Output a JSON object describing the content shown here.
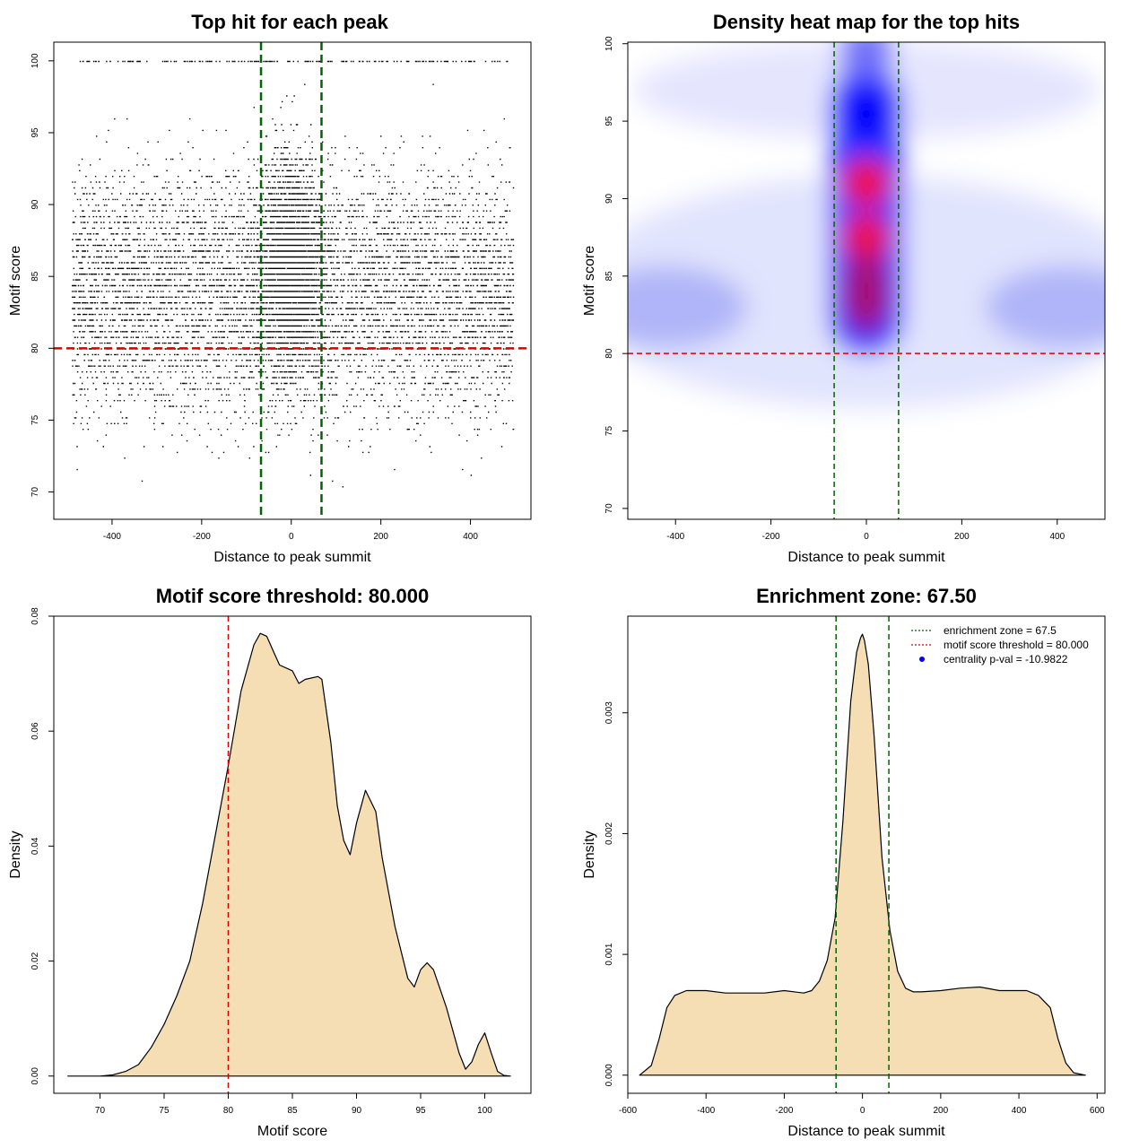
{
  "chart_data": [
    {
      "type": "scatter",
      "title": "Top hit for each peak",
      "xlabel": "Distance to peak summit",
      "ylabel": "Motif score",
      "xlim": [
        -530,
        535
      ],
      "ylim": [
        68.1,
        101.3
      ],
      "xticks": [
        "-400",
        "-200",
        "0",
        "200",
        "400"
      ],
      "yticks": [
        "70",
        "75",
        "80",
        "85",
        "90",
        "95",
        "100"
      ],
      "point_color": "#000000",
      "x_range_of_hits": [
        -490,
        495
      ],
      "hlines": [
        {
          "y": 80,
          "color": "#dd0000",
          "style": "dashed"
        }
      ],
      "vlines": [
        {
          "x": -67.5,
          "color": "#006400",
          "style": "dashed"
        },
        {
          "x": 67.5,
          "color": "#006400",
          "style": "dashed"
        }
      ],
      "note_points": "Several thousand hits; score levels are discrete; density strongly concentrated near x = 0 with scores 80-95."
    },
    {
      "type": "heatmap",
      "title": "Density heat map for the top hits",
      "xlabel": "Distance to peak summit",
      "ylabel": "Motif score",
      "xlim": [
        -500,
        500
      ],
      "ylim": [
        69.3,
        100.1
      ],
      "xticks": [
        "-400",
        "-200",
        "0",
        "200",
        "400"
      ],
      "yticks": [
        "70",
        "75",
        "80",
        "85",
        "90",
        "95",
        "100"
      ],
      "colors": {
        "low": "#ffffff",
        "mid": "#0000ff",
        "high": "#ff0000"
      },
      "hotspots": [
        {
          "x": 0,
          "y": 87.5,
          "level": "high"
        },
        {
          "x": 0,
          "y": 91,
          "level": "high"
        },
        {
          "x": 0,
          "y": 84,
          "level": "mid-high"
        },
        {
          "x": 0,
          "y": 95.5,
          "level": "mid"
        },
        {
          "x": 0,
          "y": 99.5,
          "level": "low"
        },
        {
          "x": -450,
          "y": 83,
          "level": "low"
        },
        {
          "x": 450,
          "y": 83,
          "level": "low"
        }
      ],
      "hlines": [
        {
          "y": 80,
          "color": "#dd0000",
          "style": "dashed"
        }
      ],
      "vlines": [
        {
          "x": -67.5,
          "color": "#006400",
          "style": "dashed"
        },
        {
          "x": 67.5,
          "color": "#006400",
          "style": "dashed"
        }
      ]
    },
    {
      "type": "area",
      "title": "Motif score threshold: 80.000",
      "xlabel": "Motif score",
      "ylabel": "Density",
      "xlim": [
        66.4,
        103.6
      ],
      "ylim": [
        -0.003,
        0.08
      ],
      "xticks": [
        "70",
        "75",
        "80",
        "85",
        "90",
        "95",
        "100"
      ],
      "yticks": [
        "0.00",
        "0.02",
        "0.04",
        "0.06",
        "0.08"
      ],
      "fill_color": "#f5deb3",
      "x": [
        67.5,
        70,
        71,
        72,
        73,
        74,
        75,
        76,
        77,
        78,
        79,
        80,
        81,
        82,
        82.5,
        83,
        83.5,
        84,
        85,
        85.5,
        86,
        87,
        87.3,
        88,
        88.5,
        89,
        89.5,
        90,
        90.7,
        91.5,
        92,
        93,
        94,
        94.5,
        95,
        95.5,
        96,
        97,
        98,
        98.5,
        99,
        99.5,
        100,
        100.5,
        101,
        101.5,
        102
      ],
      "values": [
        0.0,
        0.0,
        0.0002,
        0.0008,
        0.002,
        0.005,
        0.009,
        0.014,
        0.02,
        0.03,
        0.042,
        0.054,
        0.067,
        0.075,
        0.077,
        0.0765,
        0.074,
        0.0715,
        0.0705,
        0.0683,
        0.069,
        0.0695,
        0.069,
        0.058,
        0.047,
        0.041,
        0.0385,
        0.044,
        0.0497,
        0.046,
        0.038,
        0.026,
        0.017,
        0.0155,
        0.0185,
        0.0197,
        0.0185,
        0.012,
        0.004,
        0.0012,
        0.0025,
        0.0055,
        0.0075,
        0.004,
        0.0008,
        0.0001,
        0.0
      ],
      "vlines": [
        {
          "x": 80,
          "color": "#dd0000",
          "style": "dashed"
        }
      ]
    },
    {
      "type": "area",
      "title": "Enrichment zone: 67.50",
      "xlabel": "Distance to peak summit",
      "ylabel": "Density",
      "xlim": [
        -600,
        620
      ],
      "ylim": [
        -0.00015,
        0.0038
      ],
      "xticks": [
        "-600",
        "-400",
        "-200",
        "0",
        "200",
        "400",
        "600"
      ],
      "yticks": [
        "0.000",
        "0.001",
        "0.002",
        "0.003"
      ],
      "fill_color": "#f5deb3",
      "x": [
        -570,
        -540,
        -520,
        -500,
        -480,
        -450,
        -420,
        -400,
        -350,
        -300,
        -250,
        -200,
        -150,
        -130,
        -110,
        -90,
        -70,
        -50,
        -30,
        -15,
        -5,
        0,
        5,
        15,
        30,
        50,
        70,
        90,
        110,
        130,
        150,
        200,
        250,
        300,
        350,
        400,
        420,
        450,
        480,
        500,
        520,
        540,
        570
      ],
      "values": [
        0.0,
        8e-05,
        0.0003,
        0.00056,
        0.00066,
        0.0007,
        0.0007,
        0.0007,
        0.00068,
        0.00068,
        0.00068,
        0.0007,
        0.00068,
        0.0007,
        0.00078,
        0.00095,
        0.0013,
        0.0021,
        0.0031,
        0.0035,
        0.00362,
        0.00365,
        0.0036,
        0.0034,
        0.0028,
        0.0018,
        0.0012,
        0.00086,
        0.00072,
        0.00069,
        0.00069,
        0.0007,
        0.00072,
        0.00073,
        0.0007,
        0.0007,
        0.0007,
        0.00066,
        0.00056,
        0.0003,
        0.0001,
        2e-05,
        0.0
      ],
      "vlines": [
        {
          "x": -67.5,
          "color": "#006400",
          "style": "dashed"
        },
        {
          "x": 67.5,
          "color": "#006400",
          "style": "dashed"
        }
      ],
      "legend": [
        {
          "label": "enrichment zone = 67.5",
          "color": "#006400",
          "style": "dotted-line"
        },
        {
          "label": "motif score threshold = 80.000",
          "color": "#dd0000",
          "style": "dotted-line"
        },
        {
          "label": "centrality p-val = -10.9822",
          "color": "#0000ff",
          "style": "point"
        }
      ],
      "legend_position": "top-right"
    }
  ]
}
